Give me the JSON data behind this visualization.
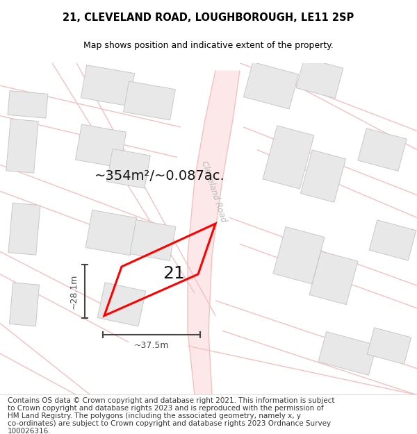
{
  "title": "21, CLEVELAND ROAD, LOUGHBOROUGH, LE11 2SP",
  "subtitle": "Map shows position and indicative extent of the property.",
  "footer_lines": [
    "Contains OS data © Crown copyright and database right 2021. This information is subject",
    "to Crown copyright and database rights 2023 and is reproduced with the permission of",
    "HM Land Registry. The polygons (including the associated geometry, namely x, y",
    "co-ordinates) are subject to Crown copyright and database rights 2023 Ordnance Survey",
    "100026316."
  ],
  "area_label": "~354m²/~0.087ac.",
  "width_label": "~37.5m",
  "height_label": "~28.1m",
  "plot_number": "21",
  "road_label": "Cleveland Road",
  "road_color": "#f5c0c0",
  "building_fc": "#e8e8e8",
  "building_ec": "#c8c8c8",
  "plot_edge_color": "#ff0000",
  "road_label_color": "#b8b8b8",
  "dim_color": "#444444",
  "text_color": "#111111",
  "footer_color": "#333333",
  "title_fontsize": 10.5,
  "subtitle_fontsize": 9,
  "area_fontsize": 14,
  "plot_num_fontsize": 18,
  "dim_fontsize": 9,
  "footer_fontsize": 7.5,
  "road_label_fontsize": 8.5,
  "map_region": [
    0.0,
    0.085,
    1.0,
    0.775
  ]
}
